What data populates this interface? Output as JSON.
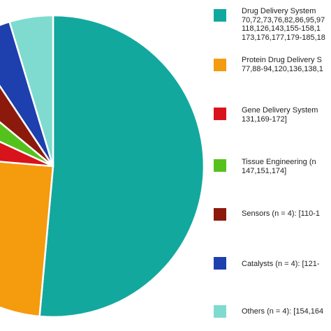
{
  "chart_data": {
    "type": "pie",
    "title": "",
    "legend_placement": "right",
    "slices": [
      {
        "label": "Drug Delivery System",
        "value": 48.5,
        "color": "#13a89e"
      },
      {
        "label": "Protein Drug Delivery System",
        "value": 23.5,
        "color": "#f59b0e"
      },
      {
        "label": "Gene Delivery System",
        "value": 5.2,
        "color": "#d9131b"
      },
      {
        "label": "Tissue Engineering",
        "value": 3.9,
        "color": "#55c11d"
      },
      {
        "label": "Sensors (n = 4)",
        "value": 4.4,
        "color": "#8c1a0c"
      },
      {
        "label": "Catalysts (n = 4)",
        "value": 4.4,
        "color": "#1e3fae"
      },
      {
        "label": "Others (n = 4)",
        "value": 4.4,
        "color": "#7fdbcf"
      }
    ]
  },
  "legend": [
    {
      "lines": [
        "Drug Delivery System",
        "70,72,73,76,82,86,95,97",
        "118,126,143,155-158,1",
        "173,176,177,179-185,18"
      ],
      "color": "#13a89e"
    },
    {
      "lines": [
        "Protein Drug Delivery S",
        "77,88-94,120,136,138,1"
      ],
      "color": "#f59b0e"
    },
    {
      "lines": [
        "Gene Delivery System",
        "131,169-172]"
      ],
      "color": "#d9131b"
    },
    {
      "lines": [
        "Tissue Engineering (n",
        "147,151,174]"
      ],
      "color": "#55c11d"
    },
    {
      "lines": [
        "Sensors (n = 4): [110-1"
      ],
      "color": "#8c1a0c"
    },
    {
      "lines": [
        "Catalysts (n = 4): [121-"
      ],
      "color": "#1e3fae"
    },
    {
      "lines": [
        "Others (n = 4): [154,164"
      ],
      "color": "#7fdbcf"
    }
  ]
}
